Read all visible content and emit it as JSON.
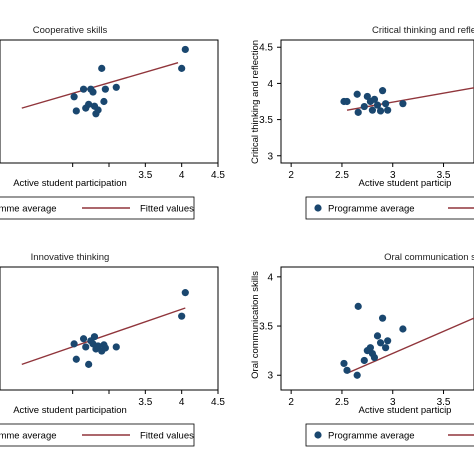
{
  "colors": {
    "frame": "#000000",
    "marker": "#1a476f",
    "fit": "#90353b",
    "background": "#ffffff"
  },
  "chart_data": [
    {
      "type": "scatter",
      "title": "Cooperative skills",
      "xlabel": "Active student participation",
      "ylabel": "",
      "xlim": [
        1.5,
        4.5
      ],
      "ylim": [
        3.3,
        4.6
      ],
      "xticks": [
        2.5,
        3,
        3.5,
        4,
        4.5
      ],
      "xtick_labels": [
        "",
        "",
        "3.5",
        "4",
        "4.5"
      ],
      "yticks": [],
      "series": [
        {
          "name": "Programme average",
          "x": [
            2.52,
            2.55,
            2.65,
            2.68,
            2.72,
            2.75,
            2.78,
            2.8,
            2.82,
            2.85,
            2.9,
            2.93,
            2.95,
            3.1,
            4.0,
            4.05
          ],
          "y": [
            4.0,
            3.85,
            4.08,
            3.88,
            3.92,
            4.08,
            4.05,
            3.9,
            3.82,
            3.86,
            4.3,
            3.95,
            4.08,
            4.1,
            4.3,
            4.5
          ],
          "marker": "circle"
        },
        {
          "name": "Fitted values",
          "x": [
            1.8,
            3.95
          ],
          "y": [
            3.88,
            4.36
          ],
          "line": true
        }
      ],
      "legend": [
        "Programme average",
        "Fitted values"
      ],
      "legend_labels": [
        "ramme average",
        "Fitted values"
      ],
      "legend_position": "bottom"
    },
    {
      "type": "scatter",
      "title": "Critical thinking and refle",
      "xlabel": "Active student particip",
      "ylabel": "Critical thinking and reflection",
      "xlim": [
        1.9,
        3.8
      ],
      "ylim": [
        2.9,
        4.6
      ],
      "xticks": [
        2,
        2.5,
        3,
        3.5
      ],
      "xtick_labels": [
        "2",
        "2.5",
        "3",
        "3.5"
      ],
      "yticks": [
        3,
        3.5,
        4,
        4.5
      ],
      "ytick_labels": [
        "3",
        "3.5",
        "4",
        "4.5"
      ],
      "series": [
        {
          "name": "Programme average",
          "x": [
            2.52,
            2.55,
            2.65,
            2.66,
            2.72,
            2.75,
            2.78,
            2.8,
            2.82,
            2.85,
            2.88,
            2.9,
            2.93,
            2.95,
            3.1
          ],
          "y": [
            3.75,
            3.75,
            3.85,
            3.6,
            3.68,
            3.82,
            3.75,
            3.63,
            3.78,
            3.7,
            3.62,
            3.9,
            3.72,
            3.63,
            3.72
          ],
          "marker": "circle"
        },
        {
          "name": "",
          "x": [
            2.55,
            3.8
          ],
          "y": [
            3.63,
            3.94
          ],
          "line": true
        }
      ],
      "legend": [
        "Programme average"
      ],
      "legend_labels": [
        "Programme average"
      ],
      "legend_position": "bottom"
    },
    {
      "type": "scatter",
      "title": "Innovative thinking",
      "xlabel": "Active student participation",
      "ylabel": "",
      "xlim": [
        1.5,
        4.5
      ],
      "ylim": [
        3.0,
        4.2
      ],
      "xticks": [
        2.5,
        3,
        3.5,
        4,
        4.5
      ],
      "xtick_labels": [
        "",
        "",
        "3.5",
        "4",
        "4.5"
      ],
      "yticks": [],
      "series": [
        {
          "name": "Programme average",
          "x": [
            2.52,
            2.55,
            2.65,
            2.68,
            2.72,
            2.75,
            2.78,
            2.8,
            2.82,
            2.85,
            2.9,
            2.93,
            2.95,
            3.1,
            4.0,
            4.05
          ],
          "y": [
            3.45,
            3.3,
            3.5,
            3.42,
            3.25,
            3.48,
            3.45,
            3.52,
            3.4,
            3.43,
            3.38,
            3.44,
            3.41,
            3.42,
            3.72,
            3.95
          ],
          "marker": "circle"
        },
        {
          "name": "Fitted values",
          "x": [
            1.8,
            4.05
          ],
          "y": [
            3.25,
            3.8
          ],
          "line": true
        }
      ],
      "legend": [
        "Programme average",
        "Fitted values"
      ],
      "legend_labels": [
        "ramme average",
        "Fitted values"
      ],
      "legend_position": "bottom"
    },
    {
      "type": "scatter",
      "title": "Oral communication s",
      "xlabel": "Active student particip",
      "ylabel": "Oral communication skills",
      "xlim": [
        1.9,
        3.8
      ],
      "ylim": [
        2.85,
        4.1
      ],
      "xticks": [
        2,
        2.5,
        3,
        3.5
      ],
      "xtick_labels": [
        "2",
        "2.5",
        "3",
        "3.5"
      ],
      "yticks": [
        3,
        3.5,
        4
      ],
      "ytick_labels": [
        "3",
        "3.5",
        "4"
      ],
      "series": [
        {
          "name": "Programme average",
          "x": [
            2.52,
            2.55,
            2.65,
            2.66,
            2.72,
            2.75,
            2.78,
            2.8,
            2.82,
            2.85,
            2.88,
            2.9,
            2.93,
            2.95,
            3.1
          ],
          "y": [
            3.12,
            3.05,
            3.0,
            3.7,
            3.15,
            3.25,
            3.28,
            3.22,
            3.18,
            3.4,
            3.33,
            3.58,
            3.28,
            3.35,
            3.47
          ],
          "marker": "circle"
        },
        {
          "name": "",
          "x": [
            2.55,
            3.8
          ],
          "y": [
            3.02,
            3.58
          ],
          "line": true
        }
      ],
      "legend": [
        "Programme average"
      ],
      "legend_labels": [
        "Programme average"
      ],
      "legend_position": "bottom"
    }
  ]
}
